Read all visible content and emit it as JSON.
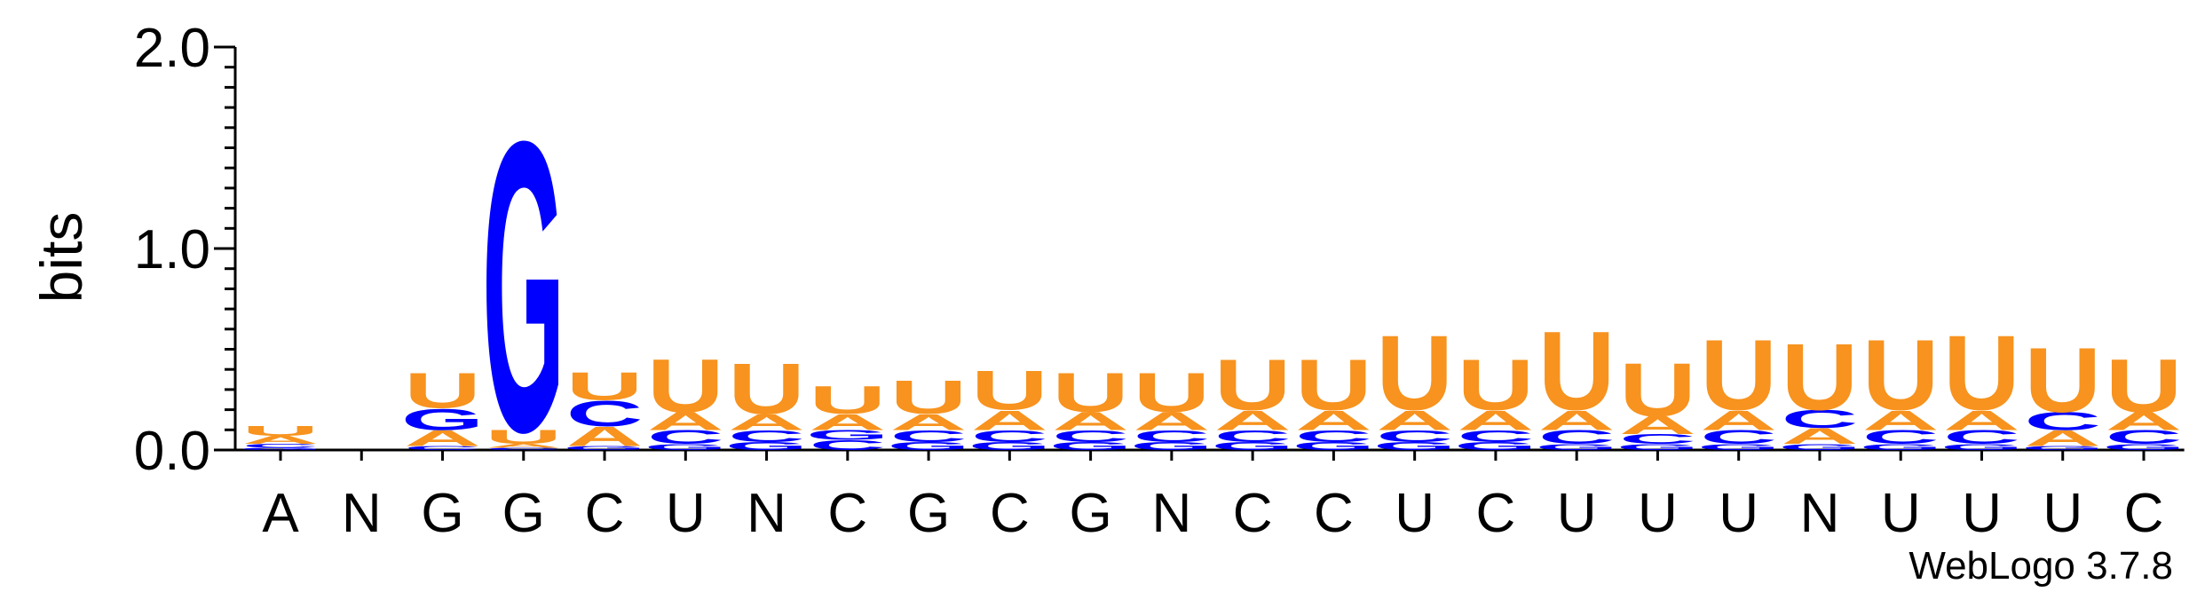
{
  "chart_data": {
    "type": "sequence-logo",
    "y_label": "bits",
    "credit": "WebLogo 3.7.8",
    "categories": [
      "A",
      "N",
      "G",
      "G",
      "C",
      "U",
      "N",
      "C",
      "G",
      "C",
      "G",
      "N",
      "C",
      "C",
      "U",
      "C",
      "U",
      "U",
      "U",
      "N",
      "U",
      "U",
      "U",
      "C"
    ],
    "series": [
      {
        "name": "A",
        "color": "#f7931e",
        "values": [
          0.04,
          0,
          0.08,
          0.02,
          0.1,
          0.09,
          0.08,
          0.08,
          0.08,
          0.1,
          0.09,
          0.09,
          0.1,
          0.1,
          0.1,
          0.1,
          0.1,
          0.09,
          0.1,
          0.08,
          0.1,
          0.1,
          0.08,
          0.09
        ]
      },
      {
        "name": "C",
        "color": "#0000ff",
        "values": [
          0.02,
          0,
          0.02,
          0.01,
          0.13,
          0.07,
          0.06,
          0.05,
          0.06,
          0.06,
          0.06,
          0.06,
          0.06,
          0.06,
          0.06,
          0.06,
          0.07,
          0.05,
          0.07,
          0.09,
          0.07,
          0.07,
          0.09,
          0.07
        ]
      },
      {
        "name": "G",
        "color": "#0000ff",
        "values": [
          0.01,
          0,
          0.11,
          1.48,
          0.02,
          0.03,
          0.04,
          0.05,
          0.04,
          0.04,
          0.04,
          0.04,
          0.04,
          0.04,
          0.04,
          0.04,
          0.03,
          0.03,
          0.03,
          0.03,
          0.03,
          0.03,
          0.02,
          0.03
        ]
      },
      {
        "name": "U",
        "color": "#f7931e",
        "values": [
          0.05,
          0,
          0.18,
          0.07,
          0.14,
          0.27,
          0.26,
          0.14,
          0.17,
          0.2,
          0.2,
          0.2,
          0.26,
          0.26,
          0.38,
          0.26,
          0.4,
          0.27,
          0.36,
          0.34,
          0.36,
          0.38,
          0.33,
          0.27
        ]
      }
    ],
    "ylim": [
      0,
      2
    ],
    "yticks": [
      {
        "value": 0,
        "label": "0.0"
      },
      {
        "value": 1,
        "label": "1.0"
      },
      {
        "value": 2,
        "label": "2.0"
      }
    ],
    "yminorticks": [
      0.1,
      0.2,
      0.3,
      0.4,
      0.5,
      0.6,
      0.7,
      0.8,
      0.9,
      1.1,
      1.2,
      1.3,
      1.4,
      1.5,
      1.6,
      1.7,
      1.8,
      1.9
    ]
  }
}
